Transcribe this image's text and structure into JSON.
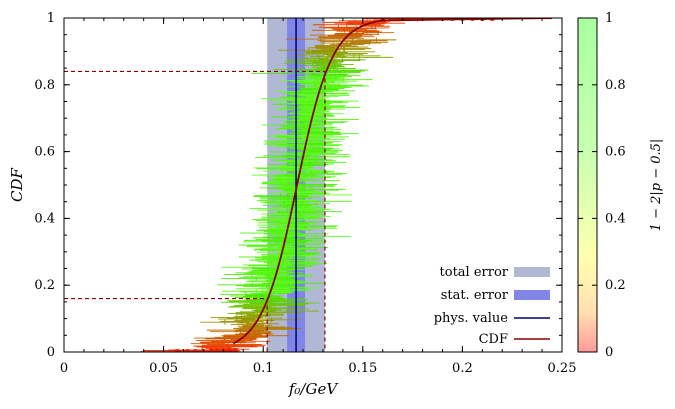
{
  "chart_data": {
    "type": "scatter",
    "xlabel": "f₀/GeV",
    "ylabel": "CDF",
    "colorbar_label": "1 − 2|p − 0.5|",
    "xlim": [
      0,
      0.25
    ],
    "ylim": [
      0,
      1
    ],
    "x_ticks": [
      "0",
      "0.05",
      "0.1",
      "0.15",
      "0.2",
      "0.25"
    ],
    "y_ticks": [
      "0",
      "0.2",
      "0.4",
      "0.6",
      "0.8",
      "1"
    ],
    "colorbar_ticks": [
      "0",
      "0.2",
      "0.4",
      "0.6",
      "0.8",
      "1"
    ],
    "colorbar_range": [
      0,
      1
    ],
    "cdf_center": 0.117,
    "cdf_width": 0.015,
    "physical_value": 0.1165,
    "stat_error": [
      0.112,
      0.121
    ],
    "total_error": [
      0.102,
      0.131
    ],
    "quantile_lines": [
      0.16,
      0.84
    ],
    "quantile_x": [
      0.102,
      0.131
    ],
    "colors": {
      "total_error": "#b0b8d6",
      "stat_error": "#7f86e8",
      "phys_value": "#00006a",
      "cdf": "#8b0000",
      "low_p": "#ff2a00",
      "high_p": "#44ee00"
    },
    "legend": {
      "placement": "bottom-right",
      "entries": [
        "total error",
        "stat. error",
        "phys. value",
        "CDF"
      ]
    }
  }
}
